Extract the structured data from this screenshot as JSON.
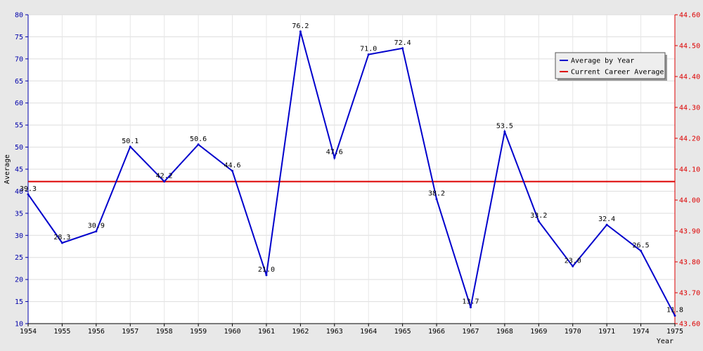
{
  "chart_data": {
    "type": "line",
    "title": "",
    "xlabel": "Year",
    "ylabel": "Average",
    "x": [
      "1954",
      "1955",
      "1956",
      "1957",
      "1958",
      "1959",
      "1960",
      "1961",
      "1962",
      "1963",
      "1964",
      "1965",
      "1966",
      "1967",
      "1968",
      "1969",
      "1970",
      "1971",
      "1974",
      "1975"
    ],
    "series": [
      {
        "name": "Average by Year",
        "color": "#0000cc",
        "values": [
          39.3,
          28.3,
          30.9,
          50.1,
          42.2,
          50.6,
          44.6,
          21.0,
          76.2,
          47.6,
          71.0,
          72.4,
          38.2,
          13.7,
          53.5,
          33.2,
          23.0,
          32.4,
          26.5,
          11.8
        ],
        "labels": [
          "39.3",
          "28.3",
          "30.9",
          "50.1",
          "42.2",
          "50.6",
          "44.6",
          "21.0",
          "76.2",
          "47.6",
          "71.0",
          "72.4",
          "38.2",
          "13.7",
          "53.5",
          "33.2",
          "23.0",
          "32.4",
          "26.5",
          "11.8"
        ]
      },
      {
        "name": "Current Career Average",
        "color": "#dd0000",
        "axis": "right",
        "value": 44.06
      }
    ],
    "ylim": [
      10,
      80
    ],
    "yticks": [
      "10",
      "15",
      "20",
      "25",
      "30",
      "35",
      "40",
      "45",
      "50",
      "55",
      "60",
      "65",
      "70",
      "75",
      "80"
    ],
    "y2lim": [
      43.6,
      44.6
    ],
    "y2ticks": [
      "43.60",
      "43.70",
      "43.80",
      "43.90",
      "44.00",
      "44.10",
      "44.20",
      "44.30",
      "44.40",
      "44.50",
      "44.60"
    ],
    "left_axis_color": "#0000aa",
    "right_axis_color": "#dd0000",
    "grid": true,
    "legend_position": "top-right"
  }
}
